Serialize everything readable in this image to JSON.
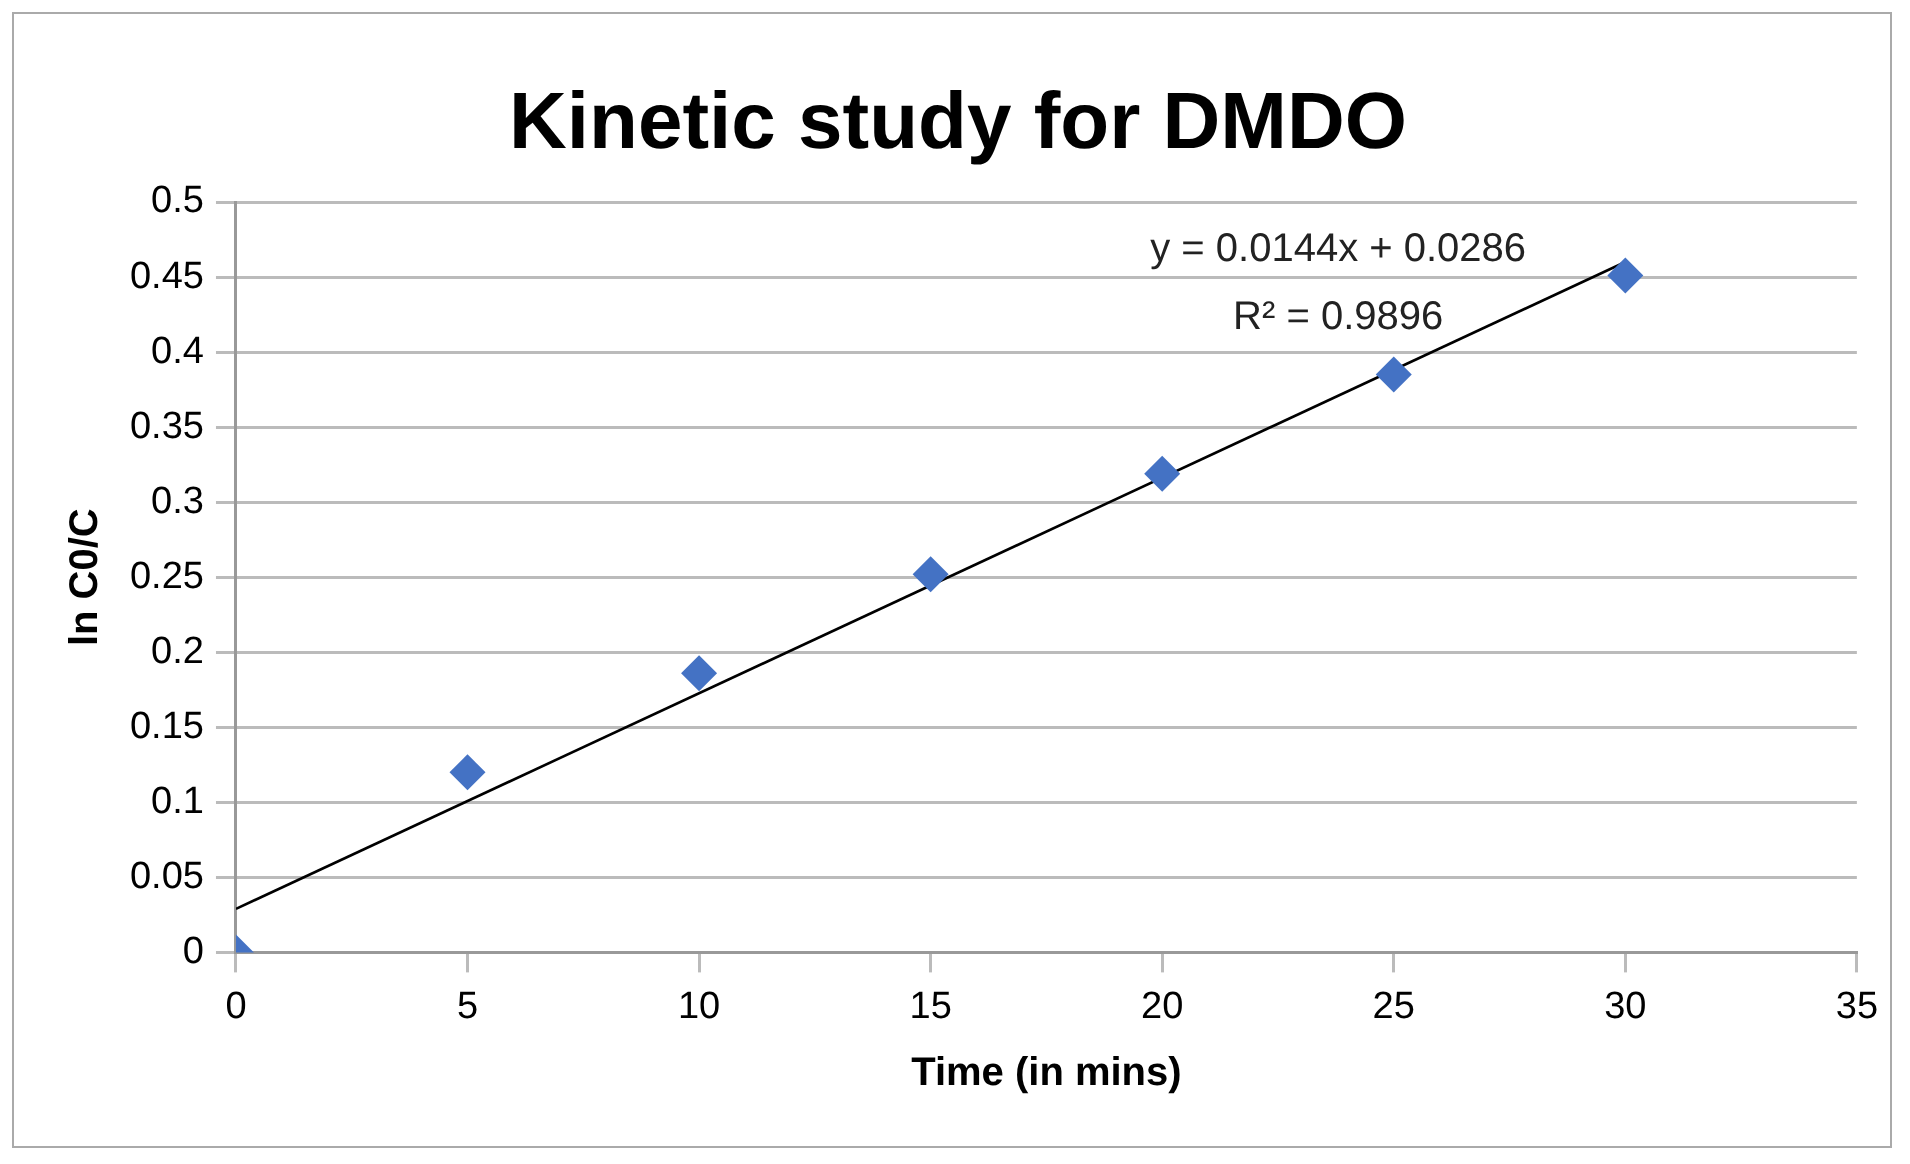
{
  "chart_data": {
    "type": "scatter",
    "title": "Kinetic study for DMDO",
    "xlabel": "Time (in mins)",
    "ylabel": "ln C0/C",
    "series": [
      {
        "color": "#4472c4",
        "marker": "diamond",
        "x": [
          0,
          5,
          10,
          15,
          20,
          25,
          30
        ],
        "values": [
          0,
          0.12,
          0.186,
          0.252,
          0.319,
          0.385,
          0.451
        ]
      },
      {
        "type": "line",
        "color": "#000000",
        "marker": "none",
        "line_style": "solid",
        "x": [
          0,
          30
        ],
        "values": [
          0.029,
          0.46
        ]
      }
    ],
    "annotations": [
      "y = 0.0144x + 0.0286",
      "R² = 0.9896"
    ],
    "xlim": [
      0,
      35
    ],
    "xticks": [
      0,
      5,
      10,
      15,
      20,
      25,
      30,
      35
    ],
    "ylim": [
      0,
      0.5
    ],
    "yticks": [
      0,
      0.05,
      0.1,
      0.15,
      0.2,
      0.25,
      0.3,
      0.35,
      0.4,
      0.45,
      0.5
    ],
    "grid": "y",
    "legend": false
  }
}
